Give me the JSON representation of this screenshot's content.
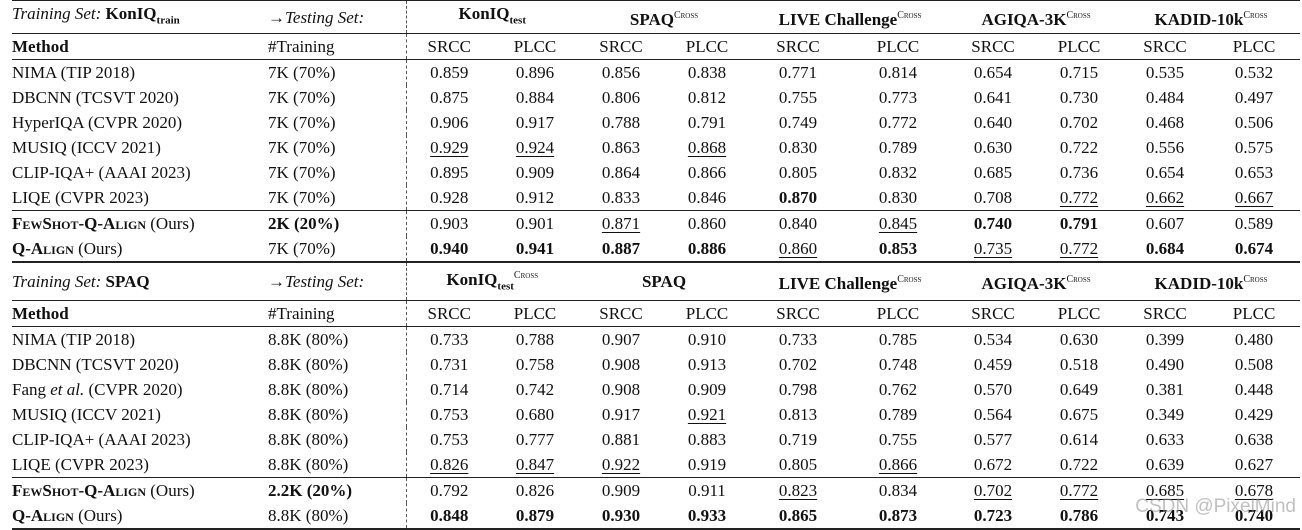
{
  "tables": [
    {
      "training_label": "Training Set:",
      "training_name": "KonIQ",
      "training_sub": "train",
      "testing_label": "→Testing Set:",
      "datasets": [
        {
          "name": "KonIQ",
          "sub": "test",
          "cross": ""
        },
        {
          "name": "SPAQ",
          "sub": "",
          "cross": "Cross"
        },
        {
          "name": "LIVE Challenge",
          "sub": "",
          "cross": "Cross"
        },
        {
          "name": "AGIQA-3K",
          "sub": "",
          "cross": "Cross"
        },
        {
          "name": "KADID-10k",
          "sub": "",
          "cross": "Cross"
        }
      ],
      "col_method": "Method",
      "col_training": "#Training",
      "metrics": [
        "SRCC",
        "PLCC",
        "SRCC",
        "PLCC",
        "SRCC",
        "PLCC",
        "SRCC",
        "PLCC",
        "SRCC",
        "PLCC"
      ],
      "rows": [
        {
          "method": "NIMA (TIP 2018)",
          "training": "7K (70%)",
          "values": [
            "0.859",
            "0.896",
            "0.856",
            "0.838",
            "0.771",
            "0.814",
            "0.654",
            "0.715",
            "0.535",
            "0.532"
          ],
          "bold": [],
          "underline": []
        },
        {
          "method": "DBCNN (TCSVT 2020)",
          "training": "7K (70%)",
          "values": [
            "0.875",
            "0.884",
            "0.806",
            "0.812",
            "0.755",
            "0.773",
            "0.641",
            "0.730",
            "0.484",
            "0.497"
          ],
          "bold": [],
          "underline": []
        },
        {
          "method": "HyperIQA (CVPR 2020)",
          "training": "7K (70%)",
          "values": [
            "0.906",
            "0.917",
            "0.788",
            "0.791",
            "0.749",
            "0.772",
            "0.640",
            "0.702",
            "0.468",
            "0.506"
          ],
          "bold": [],
          "underline": []
        },
        {
          "method": "MUSIQ (ICCV 2021)",
          "training": "7K (70%)",
          "values": [
            "0.929",
            "0.924",
            "0.863",
            "0.868",
            "0.830",
            "0.789",
            "0.630",
            "0.722",
            "0.556",
            "0.575"
          ],
          "bold": [],
          "underline": [
            0,
            1,
            3
          ]
        },
        {
          "method": "CLIP-IQA+ (AAAI 2023)",
          "training": "7K (70%)",
          "values": [
            "0.895",
            "0.909",
            "0.864",
            "0.866",
            "0.805",
            "0.832",
            "0.685",
            "0.736",
            "0.654",
            "0.653"
          ],
          "bold": [],
          "underline": []
        },
        {
          "method": "LIQE (CVPR 2023)",
          "training": "7K (70%)",
          "values": [
            "0.928",
            "0.912",
            "0.833",
            "0.846",
            "0.870",
            "0.830",
            "0.708",
            "0.772",
            "0.662",
            "0.667"
          ],
          "bold": [
            4
          ],
          "underline": [
            7,
            8,
            9
          ]
        },
        {
          "method_sc": "FewShot-Q-Align",
          "method_rest": " (Ours)",
          "training": "2K (20%)",
          "training_bold": true,
          "values": [
            "0.903",
            "0.901",
            "0.871",
            "0.860",
            "0.840",
            "0.845",
            "0.740",
            "0.791",
            "0.607",
            "0.589"
          ],
          "bold": [
            6,
            7
          ],
          "underline": [
            2,
            5
          ],
          "sep_before": true
        },
        {
          "method_sc": "Q-Align",
          "method_rest": " (Ours)",
          "training": "7K (70%)",
          "values": [
            "0.940",
            "0.941",
            "0.887",
            "0.886",
            "0.860",
            "0.853",
            "0.735",
            "0.772",
            "0.684",
            "0.674"
          ],
          "bold": [
            0,
            1,
            2,
            3,
            5,
            8,
            9
          ],
          "underline": [
            4,
            6,
            7
          ]
        }
      ]
    },
    {
      "training_label": "Training Set:",
      "training_name": "SPAQ",
      "training_sub": "",
      "testing_label": "→Testing Set:",
      "datasets": [
        {
          "name": "KonIQ",
          "sub": "test",
          "cross": "Cross"
        },
        {
          "name": "SPAQ",
          "sub": "",
          "cross": ""
        },
        {
          "name": "LIVE Challenge",
          "sub": "",
          "cross": "Cross"
        },
        {
          "name": "AGIQA-3K",
          "sub": "",
          "cross": "Cross"
        },
        {
          "name": "KADID-10k",
          "sub": "",
          "cross": "Cross"
        }
      ],
      "col_method": "Method",
      "col_training": "#Training",
      "metrics": [
        "SRCC",
        "PLCC",
        "SRCC",
        "PLCC",
        "SRCC",
        "PLCC",
        "SRCC",
        "PLCC",
        "SRCC",
        "PLCC"
      ],
      "rows": [
        {
          "method": "NIMA (TIP 2018)",
          "training": "8.8K (80%)",
          "values": [
            "0.733",
            "0.788",
            "0.907",
            "0.910",
            "0.733",
            "0.785",
            "0.534",
            "0.630",
            "0.399",
            "0.480"
          ],
          "bold": [],
          "underline": []
        },
        {
          "method": "DBCNN (TCSVT 2020)",
          "training": "8.8K (80%)",
          "values": [
            "0.731",
            "0.758",
            "0.908",
            "0.913",
            "0.702",
            "0.748",
            "0.459",
            "0.518",
            "0.490",
            "0.508"
          ],
          "bold": [],
          "underline": []
        },
        {
          "method_pre": "Fang ",
          "method_it": "et al.",
          "method_post": " (CVPR 2020)",
          "training": "8.8K (80%)",
          "values": [
            "0.714",
            "0.742",
            "0.908",
            "0.909",
            "0.798",
            "0.762",
            "0.570",
            "0.649",
            "0.381",
            "0.448"
          ],
          "bold": [],
          "underline": []
        },
        {
          "method": "MUSIQ (ICCV 2021)",
          "training": "8.8K (80%)",
          "values": [
            "0.753",
            "0.680",
            "0.917",
            "0.921",
            "0.813",
            "0.789",
            "0.564",
            "0.675",
            "0.349",
            "0.429"
          ],
          "bold": [],
          "underline": [
            3
          ]
        },
        {
          "method": "CLIP-IQA+ (AAAI 2023)",
          "training": "8.8K (80%)",
          "values": [
            "0.753",
            "0.777",
            "0.881",
            "0.883",
            "0.719",
            "0.755",
            "0.577",
            "0.614",
            "0.633",
            "0.638"
          ],
          "bold": [],
          "underline": []
        },
        {
          "method": "LIQE (CVPR 2023)",
          "training": "8.8K (80%)",
          "values": [
            "0.826",
            "0.847",
            "0.922",
            "0.919",
            "0.805",
            "0.866",
            "0.672",
            "0.722",
            "0.639",
            "0.627"
          ],
          "bold": [],
          "underline": [
            0,
            1,
            2,
            5
          ]
        },
        {
          "method_sc": "FewShot-Q-Align",
          "method_rest": " (Ours)",
          "training": "2.2K (20%)",
          "training_bold": true,
          "values": [
            "0.792",
            "0.826",
            "0.909",
            "0.911",
            "0.823",
            "0.834",
            "0.702",
            "0.772",
            "0.685",
            "0.678"
          ],
          "bold": [],
          "underline": [
            4,
            6,
            7,
            8,
            9
          ],
          "sep_before": true
        },
        {
          "method_sc": "Q-Align",
          "method_rest": " (Ours)",
          "training": "8.8K (80%)",
          "values": [
            "0.848",
            "0.879",
            "0.930",
            "0.933",
            "0.865",
            "0.873",
            "0.723",
            "0.786",
            "0.743",
            "0.740"
          ],
          "bold": [
            0,
            1,
            2,
            3,
            4,
            5,
            6,
            7,
            8,
            9
          ],
          "underline": []
        }
      ]
    }
  ],
  "watermark": "CSDN @PixelMind"
}
